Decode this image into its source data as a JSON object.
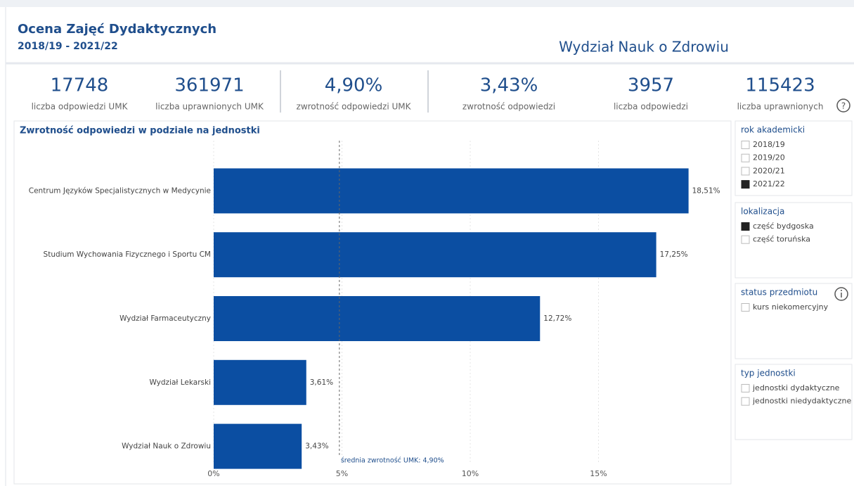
{
  "header": {
    "title": "Ocena Zajęć Dydaktycznych",
    "subtitle": "2018/19 - 2021/22",
    "unit": "Wydział Nauk o Zdrowiu"
  },
  "kpis": [
    {
      "value": "17748",
      "label": "liczba odpowiedzi UMK"
    },
    {
      "value": "361971",
      "label": "liczba uprawnionych UMK"
    },
    {
      "value": "4,90%",
      "label": "zwrotność odpowiedzi UMK"
    },
    {
      "value": "3,43%",
      "label": "zwrotność odpowiedzi"
    },
    {
      "value": "3957",
      "label": "liczba odpowiedzi"
    },
    {
      "value": "115423",
      "label": "liczba uprawnionych"
    }
  ],
  "chart_data": {
    "type": "hbar",
    "title": "Zwrotność odpowiedzi w podziale na jednostki",
    "categories": [
      "Centrum Języków Specjalistycznych w Medycynie",
      "Studium Wychowania Fizycznego i Sportu CM",
      "Wydział Farmaceutyczny",
      "Wydział Lekarski",
      "Wydział Nauk o Zdrowiu"
    ],
    "values": [
      18.51,
      17.25,
      12.72,
      3.61,
      3.43
    ],
    "value_labels": [
      "18,51%",
      "17,25%",
      "12,72%",
      "3,61%",
      "3,43%"
    ],
    "color": "#0b4ea2",
    "xlim": [
      0,
      20
    ],
    "xticks": [
      {
        "value": 0,
        "label": "0%"
      },
      {
        "value": 5,
        "label": "5%"
      },
      {
        "value": 10,
        "label": "10%"
      },
      {
        "value": 15,
        "label": "15%"
      }
    ],
    "grid": true,
    "reference_line": {
      "value": 4.9,
      "label": "średnia zwrotność UMK: 4,90%"
    }
  },
  "filters": [
    {
      "title": "rok akademicki",
      "items": [
        {
          "label": "2018/19",
          "checked": false
        },
        {
          "label": "2019/20",
          "checked": false
        },
        {
          "label": "2020/21",
          "checked": false
        },
        {
          "label": "2021/22",
          "checked": true
        }
      ]
    },
    {
      "title": "lokalizacja",
      "items": [
        {
          "label": "część bydgoska",
          "checked": true
        },
        {
          "label": "część toruńska",
          "checked": false
        }
      ]
    },
    {
      "title": "status przedmiotu",
      "items": [
        {
          "label": "kurs niekomercyjny",
          "checked": false
        }
      ]
    },
    {
      "title": "typ jednostki",
      "items": [
        {
          "label": "jednostki dydaktyczne",
          "checked": false
        },
        {
          "label": "jednostki niedydaktyczne",
          "checked": false
        }
      ]
    }
  ]
}
